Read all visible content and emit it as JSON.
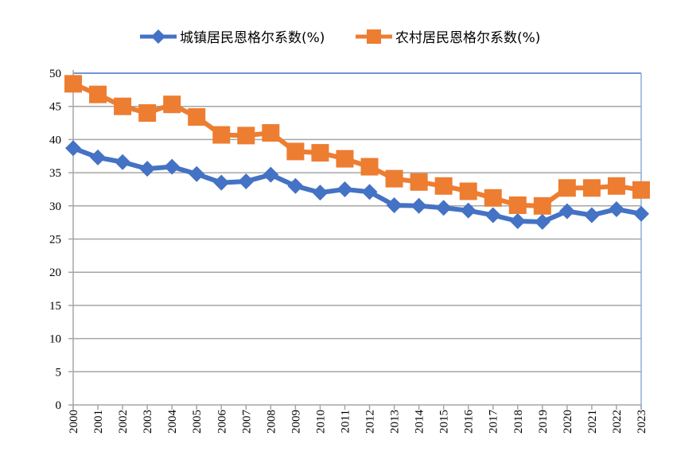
{
  "chart_data": {
    "type": "line",
    "title": "",
    "xlabel": "",
    "ylabel": "",
    "ylim": [
      0,
      50
    ],
    "yticks": [
      0,
      5,
      10,
      15,
      20,
      25,
      30,
      35,
      40,
      45,
      50
    ],
    "grid": true,
    "legend_position": "top",
    "categories": [
      "2000",
      "2001",
      "2002",
      "2003",
      "2004",
      "2005",
      "2006",
      "2007",
      "2008",
      "2009",
      "2010",
      "2011",
      "2012",
      "2013",
      "2014",
      "2015",
      "2016",
      "2017",
      "2018",
      "2019",
      "2020",
      "2021",
      "2022",
      "2023"
    ],
    "series": [
      {
        "name": "城镇居民恩格尔系数(%)",
        "color": "#4472c4",
        "marker": "diamond",
        "values": [
          38.7,
          37.3,
          36.6,
          35.6,
          35.9,
          34.8,
          33.5,
          33.7,
          34.7,
          33.0,
          32.0,
          32.5,
          32.1,
          30.1,
          30.0,
          29.7,
          29.3,
          28.6,
          27.7,
          27.6,
          29.2,
          28.6,
          29.5,
          28.8
        ]
      },
      {
        "name": "农村居民恩格尔系数(%)",
        "color": "#ed7d31",
        "marker": "square",
        "values": [
          48.4,
          46.8,
          45.0,
          44.0,
          45.3,
          43.4,
          40.7,
          40.6,
          41.0,
          38.2,
          38.0,
          37.1,
          35.9,
          34.1,
          33.6,
          33.0,
          32.2,
          31.2,
          30.1,
          30.0,
          32.7,
          32.7,
          33.0,
          32.4
        ]
      }
    ]
  }
}
